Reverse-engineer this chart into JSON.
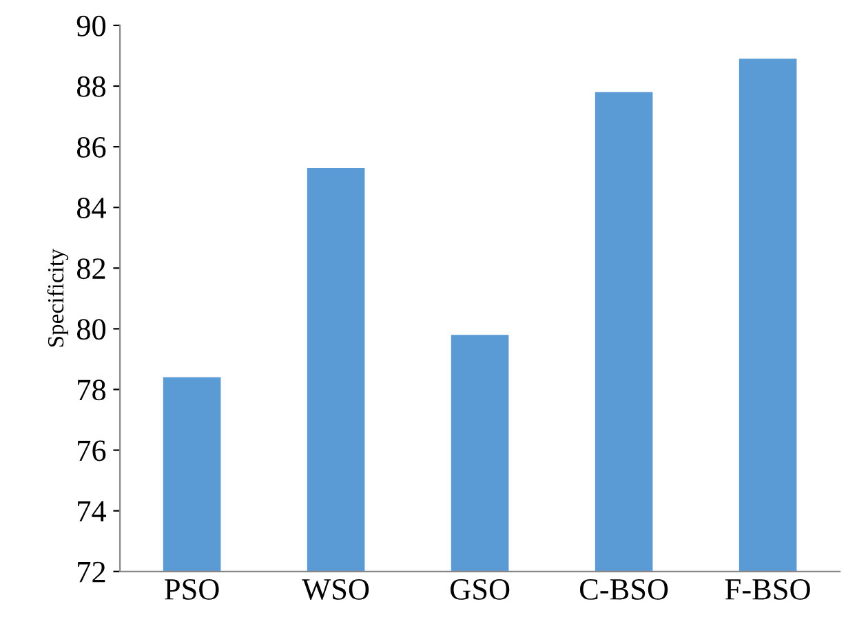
{
  "chart_data": {
    "type": "bar",
    "ylabel": "Specificity",
    "categories": [
      "PSO",
      "WSO",
      "GSO",
      "C-BSO",
      "F-BSO"
    ],
    "values": [
      78.4,
      85.3,
      79.8,
      87.8,
      88.9
    ],
    "color": "#5b9bd5",
    "ylim": [
      72,
      90
    ],
    "yticks": [
      72,
      74,
      76,
      78,
      80,
      82,
      84,
      86,
      88,
      90
    ]
  }
}
